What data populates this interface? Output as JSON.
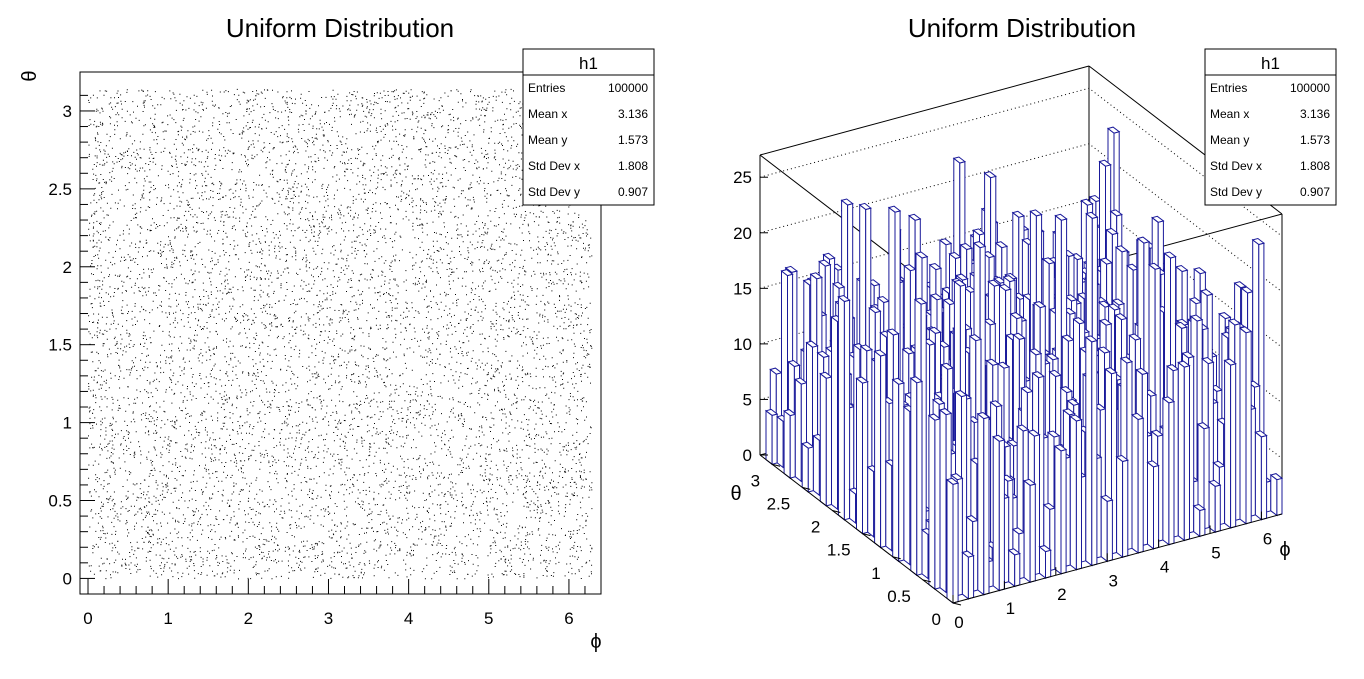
{
  "chart_data": [
    {
      "type": "scatter",
      "title": "Uniform Distribution",
      "xlabel": "ϕ",
      "ylabel": "θ",
      "xlim": [
        -0.1,
        6.4
      ],
      "ylim": [
        -0.1,
        3.25
      ],
      "xticks": [
        "0",
        "1",
        "2",
        "3",
        "4",
        "5",
        "6"
      ],
      "yticks": [
        "0",
        "0.5",
        "1",
        "1.5",
        "2",
        "2.5",
        "3"
      ],
      "point_color": "#000000",
      "description": "100000 points uniformly distributed in phi [0, 2π] and theta [0, π]",
      "data_range": {
        "x": [
          0,
          6.283
        ],
        "y": [
          0,
          3.1416
        ]
      },
      "stats": {
        "name": "h1",
        "rows": [
          {
            "label": "Entries",
            "value": "100000"
          },
          {
            "label": "Mean x",
            "value": "3.136"
          },
          {
            "label": "Mean y",
            "value": "1.573"
          },
          {
            "label": "Std Dev x",
            "value": "1.808"
          },
          {
            "label": "Std Dev y",
            "value": "0.907"
          }
        ]
      }
    },
    {
      "type": "lego",
      "title": "Uniform Distribution",
      "xlabel": "ϕ",
      "ylabel": "θ",
      "xlim": [
        0,
        6.4
      ],
      "ylim": [
        0,
        3.2
      ],
      "zlim": [
        0,
        27
      ],
      "xticks": [
        "0",
        "1",
        "2",
        "3",
        "4",
        "5",
        "6"
      ],
      "yticks": [
        "0",
        "0.5",
        "1",
        "1.5",
        "2",
        "2.5",
        "3"
      ],
      "zticks": [
        "0",
        "5",
        "10",
        "15",
        "20",
        "25"
      ],
      "bar_color": "#1a1a9a",
      "description": "2D histogram lego plot with approx 100×100 bins, counts ranging roughly 2–26 with mean near 10",
      "mean_count": 10,
      "stats": {
        "name": "h1",
        "rows": [
          {
            "label": "Entries",
            "value": "100000"
          },
          {
            "label": "Mean x",
            "value": "3.136"
          },
          {
            "label": "Mean y",
            "value": "1.573"
          },
          {
            "label": "Std Dev x",
            "value": "1.808"
          },
          {
            "label": "Std Dev y",
            "value": "0.907"
          }
        ]
      }
    }
  ]
}
